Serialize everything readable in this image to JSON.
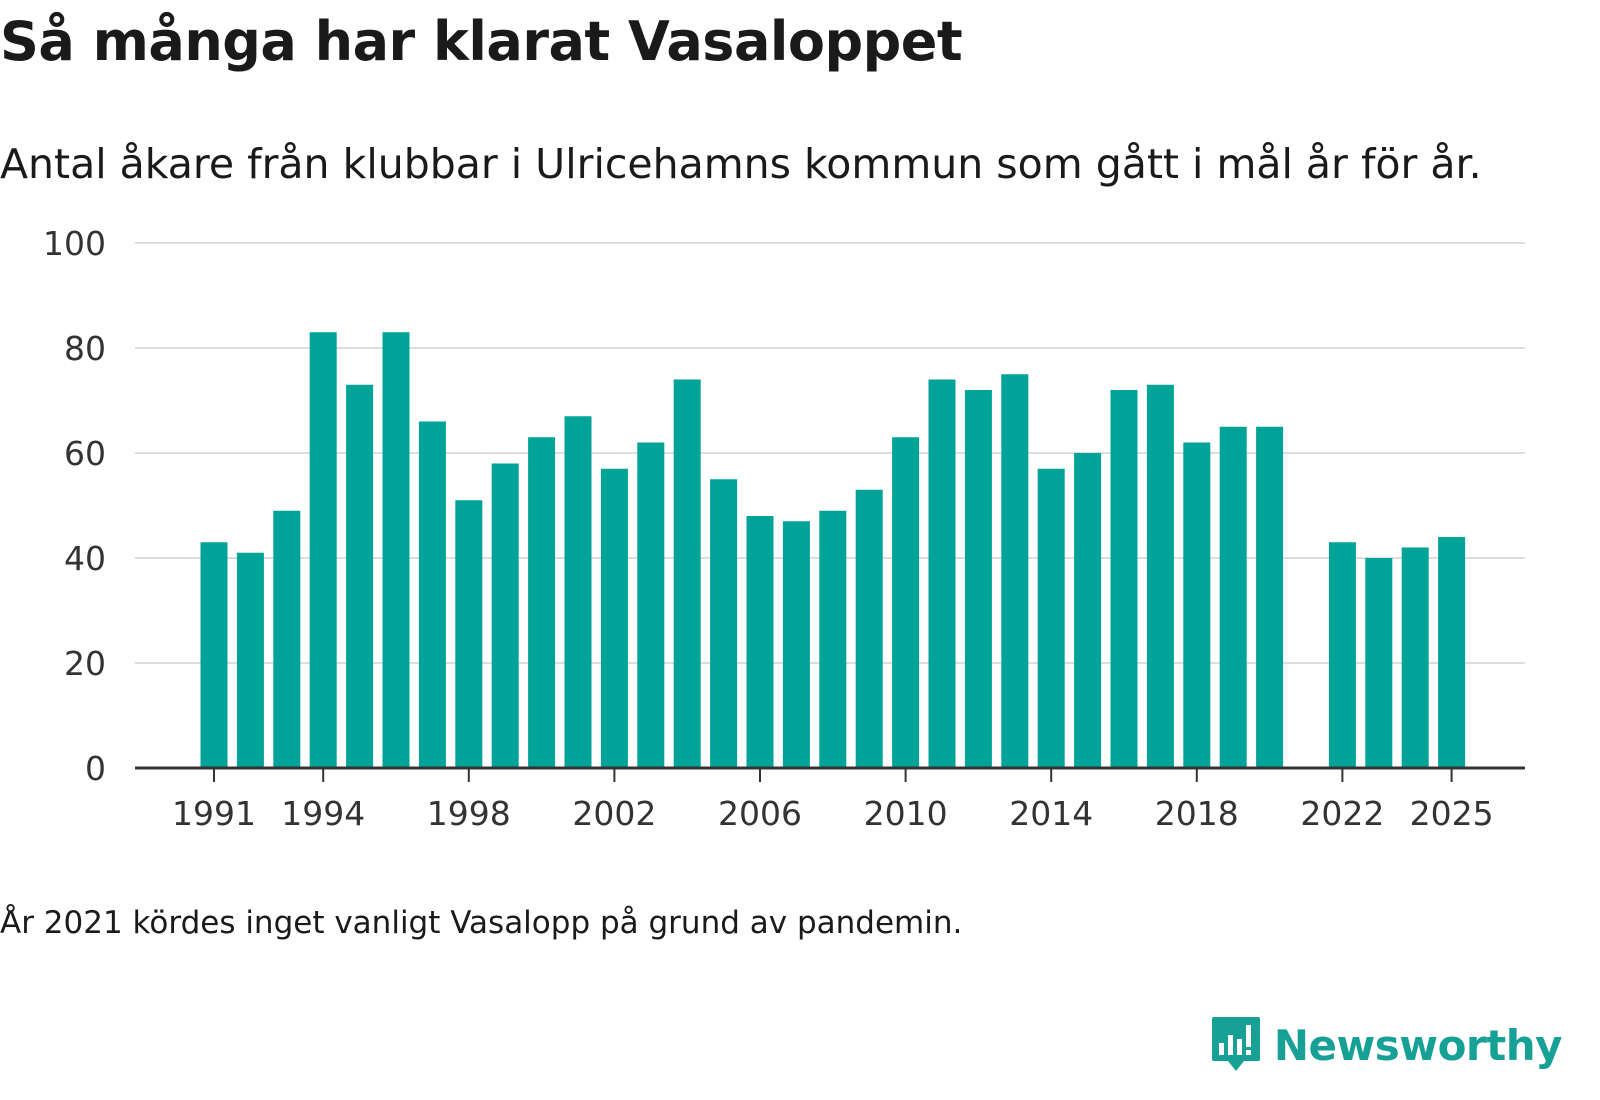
{
  "title": "Så många har klarat Vasaloppet",
  "subtitle": "Antal åkare från klubbar i Ulricehamns kommun som gått i mål år för år.",
  "footnote": "År 2021 kördes inget vanligt Vasalopp på grund av pandemin.",
  "brand": {
    "name": "Newsworthy",
    "color": "#16a096"
  },
  "colors": {
    "bar": "#00a398",
    "grid": "#dddddd",
    "axis": "#333333"
  },
  "chart_data": {
    "type": "bar",
    "title": "Så många har klarat Vasaloppet",
    "xlabel": "",
    "ylabel": "",
    "ylim": [
      0,
      100
    ],
    "yticks": [
      0,
      20,
      40,
      60,
      80,
      100
    ],
    "xticks": [
      1991,
      1994,
      1998,
      2002,
      2006,
      2010,
      2014,
      2018,
      2022,
      2025
    ],
    "grid": true,
    "categories": [
      1991,
      1992,
      1993,
      1994,
      1995,
      1996,
      1997,
      1998,
      1999,
      2000,
      2001,
      2002,
      2003,
      2004,
      2005,
      2006,
      2007,
      2008,
      2009,
      2010,
      2011,
      2012,
      2013,
      2014,
      2015,
      2016,
      2017,
      2018,
      2019,
      2020,
      2021,
      2022,
      2023,
      2024,
      2025
    ],
    "values": [
      43,
      41,
      49,
      83,
      73,
      83,
      66,
      51,
      58,
      63,
      67,
      57,
      62,
      74,
      55,
      48,
      47,
      49,
      53,
      63,
      74,
      72,
      75,
      57,
      60,
      72,
      73,
      62,
      65,
      65,
      null,
      43,
      40,
      42,
      44
    ]
  }
}
